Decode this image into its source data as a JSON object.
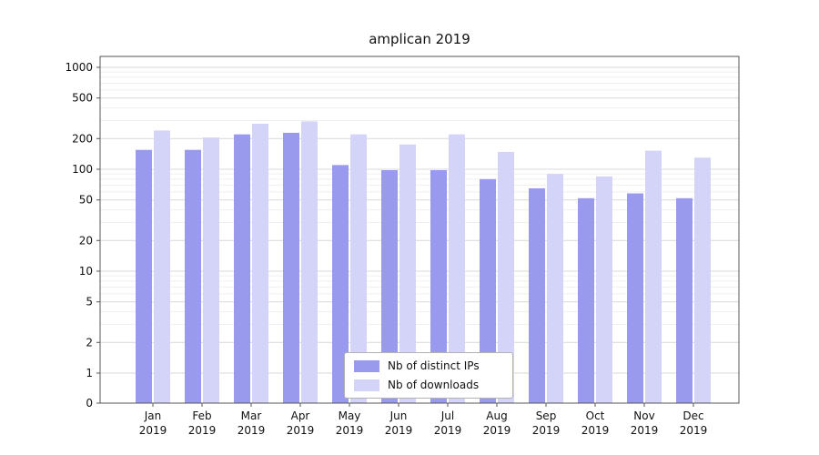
{
  "chart_data": {
    "type": "bar",
    "title": "amplican 2019",
    "categories": [
      "Jan 2019",
      "Feb 2019",
      "Mar 2019",
      "Apr 2019",
      "May 2019",
      "Jun 2019",
      "Jul 2019",
      "Aug 2019",
      "Sep 2019",
      "Oct 2019",
      "Nov 2019",
      "Dec 2019"
    ],
    "series": [
      {
        "name": "Nb of distinct IPs",
        "color": "#9999ee",
        "values": [
          155,
          155,
          220,
          228,
          110,
          98,
          98,
          80,
          65,
          52,
          58,
          52
        ]
      },
      {
        "name": "Nb of downloads",
        "color": "#d4d4f8",
        "values": [
          240,
          205,
          280,
          295,
          220,
          175,
          220,
          148,
          90,
          85,
          152,
          130
        ]
      }
    ],
    "y_ticks": [
      0,
      1,
      2,
      5,
      10,
      20,
      50,
      100,
      200,
      500,
      1000
    ],
    "y_minor_ticks": [
      3,
      4,
      6,
      7,
      8,
      9,
      30,
      40,
      60,
      70,
      80,
      90,
      300,
      400,
      600,
      700,
      800,
      900
    ],
    "y_scale": "log",
    "ylim": [
      0,
      1000
    ],
    "xlabel": "",
    "ylabel": "",
    "grid": true,
    "legend_position": "lower center"
  },
  "colors": {
    "grid_major": "#d9d9d9",
    "grid_minor": "#efefef",
    "axis": "#555555",
    "text": "#111111"
  }
}
